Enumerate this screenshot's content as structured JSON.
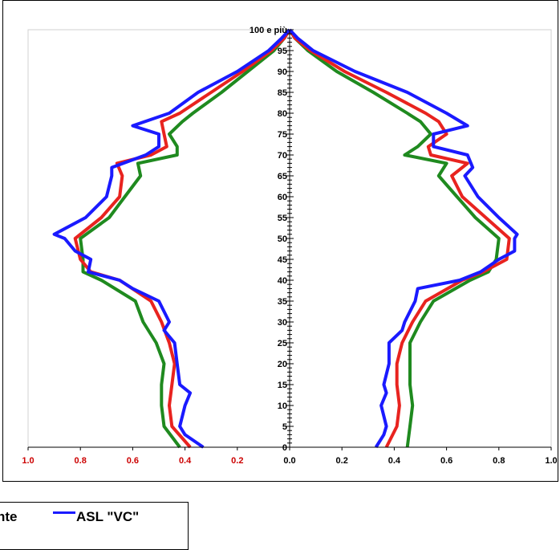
{
  "chart_data": {
    "type": "line",
    "title": "",
    "subtitle": "",
    "orientation": "population-pyramid",
    "y_axis": {
      "ticks": [
        "0",
        "5",
        "10",
        "15",
        "20",
        "25",
        "30",
        "35",
        "40",
        "45",
        "50",
        "55",
        "60",
        "65",
        "70",
        "75",
        "80",
        "85",
        "90",
        "95",
        "100 e più"
      ],
      "range": [
        0,
        100
      ]
    },
    "x_axis": {
      "left_ticks": [
        "1.0",
        "0.8",
        "0.6",
        "0.4",
        "0.2"
      ],
      "center_tick": "0.0",
      "right_ticks": [
        "0.2",
        "0.4",
        "0.6",
        "0.8",
        "1.0"
      ],
      "left_tick_color": "#cc0000",
      "right_tick_color": "#000000",
      "range": [
        -1.0,
        1.0
      ]
    },
    "grid": false,
    "legend": {
      "placement": "bottom-left"
    },
    "series": [
      {
        "name": "",
        "color": "#1f8a1f",
        "ages": [
          0,
          5,
          10,
          15,
          20,
          25,
          30,
          35,
          40,
          42,
          45,
          50,
          55,
          60,
          65,
          68,
          70,
          72,
          75,
          78,
          80,
          85,
          90,
          95,
          98,
          100
        ],
        "left": [
          0.42,
          0.48,
          0.49,
          0.49,
          0.48,
          0.51,
          0.56,
          0.59,
          0.72,
          0.79,
          0.79,
          0.8,
          0.69,
          0.63,
          0.57,
          0.58,
          0.43,
          0.43,
          0.46,
          0.41,
          0.37,
          0.26,
          0.16,
          0.06,
          0.02,
          0.0
        ],
        "right": [
          0.45,
          0.46,
          0.47,
          0.46,
          0.46,
          0.46,
          0.5,
          0.55,
          0.69,
          0.76,
          0.79,
          0.8,
          0.71,
          0.64,
          0.57,
          0.6,
          0.44,
          0.49,
          0.54,
          0.5,
          0.45,
          0.32,
          0.18,
          0.07,
          0.02,
          0.0
        ]
      },
      {
        "name": "",
        "color": "#e8231f",
        "ages": [
          0,
          5,
          10,
          15,
          20,
          25,
          30,
          35,
          40,
          42,
          45,
          50,
          55,
          60,
          65,
          68,
          70,
          72,
          75,
          78,
          80,
          85,
          90,
          95,
          98,
          100
        ],
        "left": [
          0.38,
          0.45,
          0.46,
          0.45,
          0.44,
          0.46,
          0.49,
          0.53,
          0.65,
          0.76,
          0.8,
          0.82,
          0.72,
          0.65,
          0.64,
          0.66,
          0.53,
          0.47,
          0.48,
          0.49,
          0.42,
          0.3,
          0.18,
          0.07,
          0.02,
          0.0
        ],
        "right": [
          0.37,
          0.41,
          0.42,
          0.41,
          0.41,
          0.43,
          0.47,
          0.52,
          0.66,
          0.74,
          0.83,
          0.84,
          0.75,
          0.66,
          0.62,
          0.68,
          0.54,
          0.53,
          0.6,
          0.57,
          0.52,
          0.37,
          0.21,
          0.08,
          0.02,
          0.0
        ]
      },
      {
        "name": "ASL \"VC\"",
        "color": "#1a1aff",
        "ages": [
          0,
          3,
          5,
          10,
          13,
          15,
          20,
          25,
          28,
          30,
          35,
          38,
          40,
          42,
          45,
          47,
          50,
          51,
          55,
          60,
          65,
          67,
          70,
          72,
          75,
          77,
          80,
          85,
          90,
          95,
          98,
          100
        ],
        "left": [
          0.33,
          0.4,
          0.42,
          0.4,
          0.38,
          0.42,
          0.43,
          0.44,
          0.48,
          0.46,
          0.5,
          0.6,
          0.65,
          0.77,
          0.76,
          0.82,
          0.86,
          0.9,
          0.78,
          0.7,
          0.68,
          0.68,
          0.55,
          0.5,
          0.5,
          0.6,
          0.46,
          0.35,
          0.2,
          0.08,
          0.03,
          0.0
        ],
        "right": [
          0.33,
          0.36,
          0.37,
          0.35,
          0.37,
          0.36,
          0.38,
          0.38,
          0.43,
          0.44,
          0.48,
          0.49,
          0.65,
          0.73,
          0.8,
          0.86,
          0.86,
          0.87,
          0.8,
          0.72,
          0.67,
          0.7,
          0.68,
          0.55,
          0.55,
          0.68,
          0.6,
          0.45,
          0.25,
          0.09,
          0.03,
          0.0
        ]
      }
    ]
  },
  "legend": {
    "items": [
      {
        "label": "nte",
        "color": "#1f8a1f",
        "has_swatch": false
      },
      {
        "label": "ASL \"VC\"",
        "color": "#1a1aff",
        "has_swatch": true
      }
    ]
  }
}
